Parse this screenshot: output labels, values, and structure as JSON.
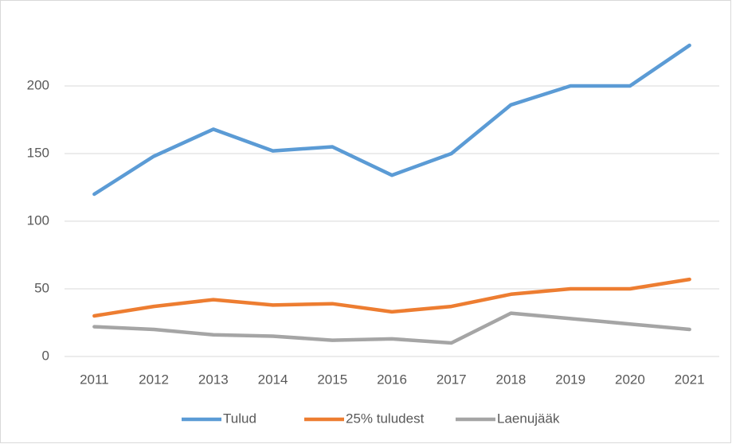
{
  "chart_data": {
    "type": "line",
    "categories": [
      "2011",
      "2012",
      "2013",
      "2014",
      "2015",
      "2016",
      "2017",
      "2018",
      "2019",
      "2020",
      "2021"
    ],
    "series": [
      {
        "name": "Tulud",
        "color": "#5b9bd5",
        "values": [
          120,
          148,
          168,
          152,
          155,
          134,
          150,
          186,
          200,
          200,
          230
        ]
      },
      {
        "name": "25% tuludest",
        "color": "#ed7d31",
        "values": [
          30,
          37,
          42,
          38,
          39,
          33,
          37,
          46,
          50,
          50,
          57
        ]
      },
      {
        "name": "Laenujääk",
        "color": "#a5a5a5",
        "values": [
          22,
          20,
          16,
          15,
          12,
          13,
          10,
          32,
          28,
          24,
          20
        ]
      }
    ],
    "ylim": [
      0,
      250
    ],
    "yticks": [
      0,
      50,
      100,
      150,
      200
    ],
    "grid": true,
    "legend": "bottom"
  }
}
